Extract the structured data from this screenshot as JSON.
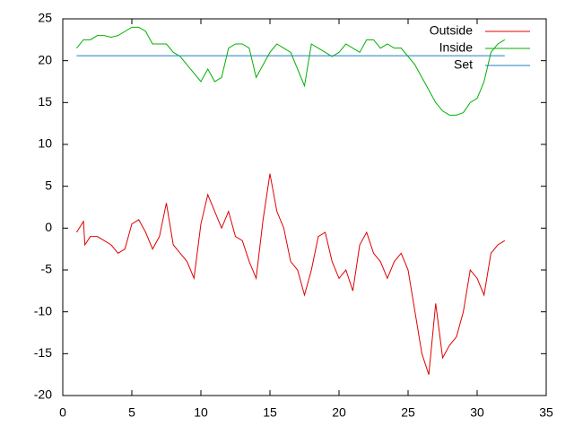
{
  "chart_data": {
    "type": "line",
    "xlim": [
      0,
      35
    ],
    "xticks": [
      0,
      5,
      10,
      15,
      20,
      25,
      30,
      35
    ],
    "ylim": [
      -20,
      25
    ],
    "yticks": [
      -20,
      -15,
      -10,
      -5,
      0,
      5,
      10,
      15,
      20,
      25
    ],
    "legend": "top-right",
    "series": [
      {
        "name": "Outside",
        "color": "#e00000",
        "x": [
          1,
          1.5,
          1.6,
          2,
          2.5,
          3,
          3.5,
          4,
          4.5,
          5,
          5.5,
          6,
          6.5,
          7,
          7.5,
          8,
          8.5,
          9,
          9.5,
          10,
          10.5,
          11,
          11.5,
          12,
          12.5,
          13,
          13.5,
          14,
          14.5,
          15,
          15.5,
          16,
          16.5,
          17,
          17.5,
          18,
          18.5,
          19,
          19.5,
          20,
          20.5,
          21,
          21.5,
          22,
          22.5,
          23,
          23.5,
          24,
          24.5,
          25,
          25.5,
          26,
          26.5,
          27,
          27.5,
          28,
          28.5,
          29,
          29.5,
          30,
          30.5,
          31,
          31.5,
          32
        ],
        "values": [
          -0.5,
          0.8,
          -2,
          -1,
          -1,
          -1.5,
          -2,
          -3,
          -2.5,
          0.5,
          1,
          -0.5,
          -2.5,
          -1,
          3,
          -2,
          -3,
          -4,
          -6,
          0.5,
          4,
          2,
          0,
          2,
          -1,
          -1.5,
          -4,
          -6,
          1,
          6.5,
          2,
          0,
          -4,
          -5,
          -8,
          -5,
          -1,
          -0.5,
          -4,
          -6,
          -5,
          -7.5,
          -2,
          -0.5,
          -3,
          -4,
          -6,
          -4,
          -3,
          -5,
          -10,
          -15,
          -17.5,
          -9,
          -15.5,
          -14,
          -13,
          -10,
          -5,
          -6,
          -8,
          -3,
          -2,
          -1.5
        ]
      },
      {
        "name": "Inside",
        "color": "#00b000",
        "x": [
          1,
          1.5,
          2,
          2.5,
          3,
          3.5,
          4,
          4.5,
          5,
          5.5,
          6,
          6.5,
          7,
          7.5,
          8,
          8.5,
          9,
          9.5,
          10,
          10.5,
          11,
          11.5,
          12,
          12.5,
          13,
          13.5,
          14,
          14.5,
          15,
          15.5,
          16,
          16.5,
          17,
          17.5,
          18,
          18.5,
          19,
          19.5,
          20,
          20.5,
          21,
          21.5,
          22,
          22.5,
          23,
          23.5,
          24,
          24.5,
          25,
          25.5,
          26,
          26.5,
          27,
          27.5,
          28,
          28.5,
          29,
          29.5,
          30,
          30.5,
          31,
          31.5,
          32
        ],
        "values": [
          21.5,
          22.5,
          22.5,
          23,
          23,
          22.8,
          23,
          23.5,
          24,
          24,
          23.5,
          22,
          22,
          22,
          21,
          20.5,
          19.5,
          18.5,
          17.5,
          19,
          17.5,
          18,
          21.5,
          22,
          22,
          21.5,
          18,
          19.5,
          21,
          22,
          21.5,
          21,
          19,
          17,
          22,
          21.5,
          21,
          20.5,
          21,
          22,
          21.5,
          21,
          22.5,
          22.5,
          21.5,
          22,
          21.5,
          21.5,
          20.5,
          19.5,
          18,
          16.5,
          15,
          14,
          13.5,
          13.5,
          13.8,
          15,
          15.5,
          17.5,
          21,
          22,
          22.5
        ]
      },
      {
        "name": "Set",
        "color": "#1f7fc0",
        "x": [
          1,
          32
        ],
        "values": [
          20.6,
          20.6
        ]
      }
    ]
  }
}
